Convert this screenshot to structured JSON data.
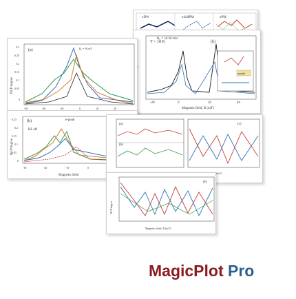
{
  "brand": {
    "name": "MagicPlot",
    "edition": "Pro",
    "name_color": "#8b1a1f",
    "edition_color": "#2e5f8d"
  },
  "cards": {
    "top": {
      "legend": [
        "πDW",
        "πAMPM",
        "πPM"
      ]
    },
    "left": {
      "panel_label": "(a)",
      "y_title": "NCP degree",
      "x_title": "Magnetic field, B (mT)",
      "x_ticks": [
        "-30",
        "-20",
        "-10",
        "0",
        "10",
        "20"
      ],
      "y_ticks": [
        "0.3",
        "0.25",
        "0.2",
        "0.15",
        "0.1",
        "0.05",
        "0"
      ],
      "annotation": "B₀ = 30 mT"
    },
    "right": {
      "panel_label": "(b)",
      "annotation": "T = 18 K",
      "legend": "B₀ = 50 W/cm²",
      "y_title": "NCP degree",
      "x_title": "Magnetic field, B (mT)",
      "x_ticks": [
        "-20",
        "0",
        "20",
        "40"
      ],
      "tag": "sample"
    },
    "mid_left": {
      "panel_label": "(b)",
      "annotation_left": "RF off",
      "annotation_mid": "e-peak",
      "y_title": "NCP degree",
      "x_title": "Magnetic field",
      "y_ticks": [
        "0.25",
        "0.2",
        "0.15",
        "0.1",
        "0.05",
        "0"
      ],
      "x_ticks": [
        "-30",
        "-20",
        "-10",
        "0"
      ]
    },
    "mid_right": {
      "panels": [
        "(a)",
        "(b)",
        "(c)"
      ],
      "x_title_left": "Magnetic field, B (mT)",
      "x_title_right": "Magnetic field, B (mT)"
    },
    "bottom": {
      "panel_label": "(e)",
      "y_title": "NCP degree",
      "x_title": "Magnetic field, B (mT)"
    }
  }
}
